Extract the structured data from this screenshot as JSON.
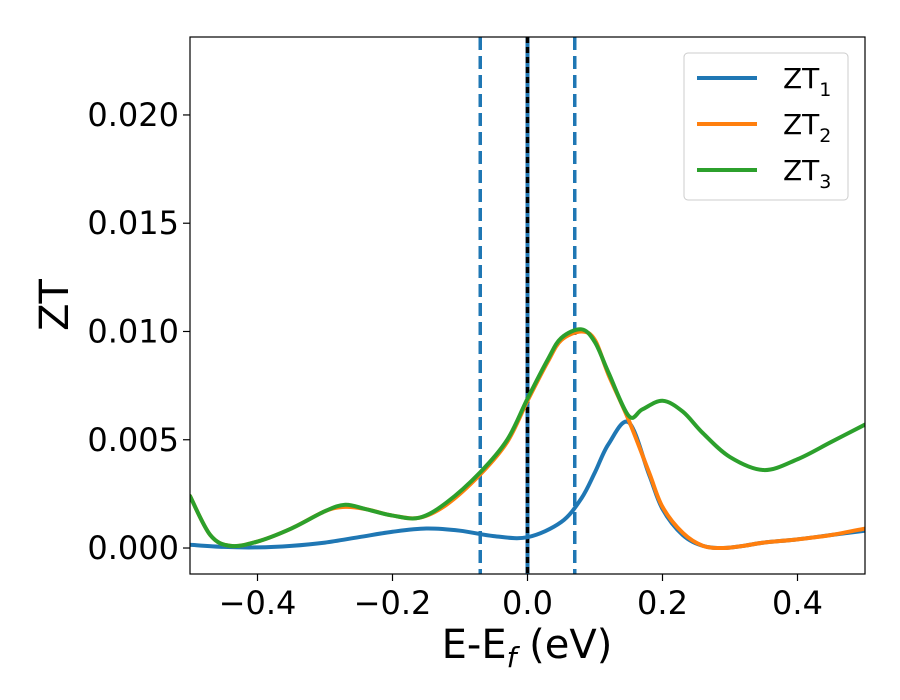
{
  "chart_data": {
    "type": "line",
    "xlabel_main": "E-E",
    "xlabel_sub": "f",
    "xlabel_unit": " (eV)",
    "ylabel": "ZT",
    "xlim": [
      -0.5,
      0.5
    ],
    "ylim": [
      -0.0012,
      0.0236
    ],
    "xticks": [
      {
        "value": -0.4,
        "label": "−0.4"
      },
      {
        "value": -0.2,
        "label": "−0.2"
      },
      {
        "value": 0.0,
        "label": "0.0"
      },
      {
        "value": 0.2,
        "label": "0.2"
      },
      {
        "value": 0.4,
        "label": "0.4"
      }
    ],
    "yticks": [
      {
        "value": 0.0,
        "label": "0.000"
      },
      {
        "value": 0.005,
        "label": "0.005"
      },
      {
        "value": 0.01,
        "label": "0.010"
      },
      {
        "value": 0.015,
        "label": "0.015"
      },
      {
        "value": 0.02,
        "label": "0.020"
      }
    ],
    "grid": false,
    "legend_position": "top-right",
    "vlines": [
      {
        "x": -0.07,
        "style": "dashed",
        "color": "#1f77b4"
      },
      {
        "x": 0.0,
        "style": "solid",
        "color": "#1f77b4"
      },
      {
        "x": 0.0,
        "style": "dashed",
        "color": "#000000"
      },
      {
        "x": 0.07,
        "style": "dashed",
        "color": "#1f77b4"
      }
    ],
    "series": [
      {
        "name": "ZT",
        "name_sub": "1",
        "color": "#1f77b4",
        "x": [
          -0.5,
          -0.45,
          -0.4,
          -0.35,
          -0.3,
          -0.25,
          -0.2,
          -0.15,
          -0.1,
          -0.05,
          0.0,
          0.05,
          0.08,
          0.1,
          0.12,
          0.15,
          0.18,
          0.2,
          0.23,
          0.26,
          0.29,
          0.32,
          0.35,
          0.4,
          0.45,
          0.5
        ],
        "y": [
          0.00015,
          5e-05,
          3e-05,
          0.0001,
          0.00025,
          0.0005,
          0.00075,
          0.0009,
          0.0008,
          0.00055,
          0.0005,
          0.0012,
          0.0023,
          0.0035,
          0.0048,
          0.0058,
          0.0034,
          0.0018,
          0.0006,
          0.0001,
          0.0,
          0.0001,
          0.00025,
          0.0004,
          0.0006,
          0.0008
        ]
      },
      {
        "name": "ZT",
        "name_sub": "2",
        "color": "#ff7f0e",
        "x": [
          -0.5,
          -0.47,
          -0.44,
          -0.4,
          -0.35,
          -0.3,
          -0.27,
          -0.24,
          -0.2,
          -0.16,
          -0.12,
          -0.07,
          -0.03,
          0.0,
          0.03,
          0.05,
          0.08,
          0.1,
          0.12,
          0.15,
          0.18,
          0.2,
          0.23,
          0.26,
          0.29,
          0.32,
          0.35,
          0.4,
          0.45,
          0.5
        ],
        "y": [
          0.0024,
          0.0006,
          0.0001,
          0.0003,
          0.0009,
          0.0017,
          0.0019,
          0.0018,
          0.0015,
          0.0014,
          0.002,
          0.0034,
          0.0049,
          0.0068,
          0.0086,
          0.0096,
          0.01,
          0.0096,
          0.008,
          0.0059,
          0.0035,
          0.0019,
          0.0007,
          0.0001,
          0.0,
          0.0001,
          0.00025,
          0.0004,
          0.0006,
          0.0009
        ]
      },
      {
        "name": "ZT",
        "name_sub": "3",
        "color": "#2ca02c",
        "x": [
          -0.5,
          -0.47,
          -0.44,
          -0.4,
          -0.35,
          -0.3,
          -0.27,
          -0.24,
          -0.2,
          -0.16,
          -0.12,
          -0.07,
          -0.03,
          0.0,
          0.03,
          0.05,
          0.08,
          0.1,
          0.12,
          0.15,
          0.17,
          0.2,
          0.23,
          0.26,
          0.3,
          0.35,
          0.4,
          0.45,
          0.5
        ],
        "y": [
          0.0024,
          0.0006,
          0.0001,
          0.0003,
          0.0009,
          0.0017,
          0.002,
          0.0018,
          0.0015,
          0.0014,
          0.0021,
          0.0035,
          0.005,
          0.0069,
          0.0087,
          0.0097,
          0.0101,
          0.0095,
          0.0081,
          0.0061,
          0.0064,
          0.0068,
          0.0063,
          0.0053,
          0.0042,
          0.0036,
          0.0041,
          0.0049,
          0.0057
        ]
      }
    ]
  }
}
